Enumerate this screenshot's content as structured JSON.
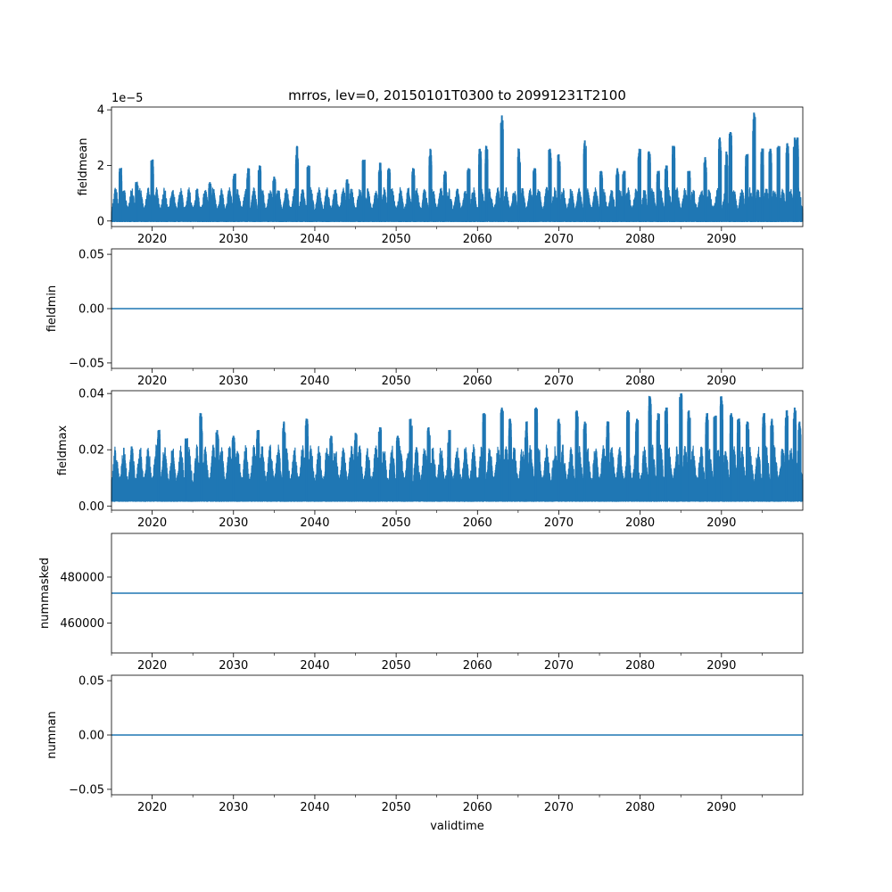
{
  "figure": {
    "title": "mrros, lev=0, 20150101T0300 to 20991231T2100",
    "xlabel": "validtime",
    "line_color": "#1f77b4"
  },
  "chart_data": [
    {
      "type": "line",
      "ylabel": "fieldmean",
      "xlim": [
        2015.0,
        2100.0
      ],
      "ylim": [
        -0.2,
        4.1
      ],
      "offset_text": "1e−5",
      "x_ticks": [
        2020,
        2030,
        2040,
        2050,
        2060,
        2070,
        2080,
        2090
      ],
      "x_tick_labels": [
        "2020",
        "2030",
        "2040",
        "2050",
        "2060",
        "2070",
        "2080",
        "2090"
      ],
      "y_ticks": [
        0,
        2,
        4
      ],
      "y_tick_labels": [
        "0",
        "2",
        "4"
      ],
      "series": [
        {
          "baseline": 0.0,
          "typical_peak": 1.1,
          "peaks": [
            {
              "x": 2016.1,
              "y": 1.9
            },
            {
              "x": 2018.1,
              "y": 1.4
            },
            {
              "x": 2020.0,
              "y": 2.2
            },
            {
              "x": 2027.1,
              "y": 1.4
            },
            {
              "x": 2030.1,
              "y": 1.7
            },
            {
              "x": 2031.8,
              "y": 1.9
            },
            {
              "x": 2033.2,
              "y": 2.0
            },
            {
              "x": 2035.0,
              "y": 1.6
            },
            {
              "x": 2037.8,
              "y": 2.7
            },
            {
              "x": 2039.2,
              "y": 2.0
            },
            {
              "x": 2044.0,
              "y": 1.5
            },
            {
              "x": 2046.0,
              "y": 2.2
            },
            {
              "x": 2048.0,
              "y": 2.1
            },
            {
              "x": 2049.1,
              "y": 1.9
            },
            {
              "x": 2052.1,
              "y": 1.9
            },
            {
              "x": 2054.2,
              "y": 2.6
            },
            {
              "x": 2056.0,
              "y": 1.8
            },
            {
              "x": 2058.9,
              "y": 1.9
            },
            {
              "x": 2060.3,
              "y": 2.6
            },
            {
              "x": 2061.1,
              "y": 2.7
            },
            {
              "x": 2063.0,
              "y": 3.8
            },
            {
              "x": 2065.1,
              "y": 2.6
            },
            {
              "x": 2067.0,
              "y": 1.9
            },
            {
              "x": 2068.9,
              "y": 2.6
            },
            {
              "x": 2070.0,
              "y": 2.4
            },
            {
              "x": 2073.2,
              "y": 2.9
            },
            {
              "x": 2075.2,
              "y": 1.8
            },
            {
              "x": 2077.2,
              "y": 1.9
            },
            {
              "x": 2078.0,
              "y": 1.8
            },
            {
              "x": 2079.9,
              "y": 2.6
            },
            {
              "x": 2081.1,
              "y": 2.5
            },
            {
              "x": 2082.2,
              "y": 1.8
            },
            {
              "x": 2083.2,
              "y": 2.0
            },
            {
              "x": 2084.1,
              "y": 2.7
            },
            {
              "x": 2086.0,
              "y": 1.8
            },
            {
              "x": 2088.0,
              "y": 2.3
            },
            {
              "x": 2089.8,
              "y": 3.0
            },
            {
              "x": 2090.6,
              "y": 2.5
            },
            {
              "x": 2091.1,
              "y": 3.2
            },
            {
              "x": 2093.1,
              "y": 2.4
            },
            {
              "x": 2094.0,
              "y": 3.9
            },
            {
              "x": 2095.0,
              "y": 2.6
            },
            {
              "x": 2096.0,
              "y": 2.6
            },
            {
              "x": 2097.0,
              "y": 2.7
            },
            {
              "x": 2098.1,
              "y": 2.8
            },
            {
              "x": 2099.0,
              "y": 3.0
            },
            {
              "x": 2099.3,
              "y": 3.0
            }
          ]
        }
      ]
    },
    {
      "type": "line",
      "ylabel": "fieldmin",
      "xlim": [
        2015.0,
        2100.0
      ],
      "ylim": [
        -0.055,
        0.055
      ],
      "x_ticks": [
        2020,
        2030,
        2040,
        2050,
        2060,
        2070,
        2080,
        2090
      ],
      "x_tick_labels": [
        "2020",
        "2030",
        "2040",
        "2050",
        "2060",
        "2070",
        "2080",
        "2090"
      ],
      "y_ticks": [
        -0.05,
        0.0,
        0.05
      ],
      "y_tick_labels": [
        "−0.05",
        "0.00",
        "0.05"
      ],
      "series": [
        {
          "constant": 0.0
        }
      ]
    },
    {
      "type": "line",
      "ylabel": "fieldmax",
      "xlim": [
        2015.0,
        2100.0
      ],
      "ylim": [
        -0.0015,
        0.041
      ],
      "x_ticks": [
        2020,
        2030,
        2040,
        2050,
        2060,
        2070,
        2080,
        2090
      ],
      "x_tick_labels": [
        "2020",
        "2030",
        "2040",
        "2050",
        "2060",
        "2070",
        "2080",
        "2090"
      ],
      "y_ticks": [
        0.0,
        0.02,
        0.04
      ],
      "y_tick_labels": [
        "0.00",
        "0.02",
        "0.04"
      ],
      "series": [
        {
          "baseline": 0.002,
          "typical_peak": 0.02,
          "peaks": [
            {
              "x": 2020.8,
              "y": 0.027
            },
            {
              "x": 2024.2,
              "y": 0.024
            },
            {
              "x": 2026.0,
              "y": 0.033
            },
            {
              "x": 2028.0,
              "y": 0.027
            },
            {
              "x": 2030.0,
              "y": 0.025
            },
            {
              "x": 2033.0,
              "y": 0.027
            },
            {
              "x": 2036.2,
              "y": 0.03
            },
            {
              "x": 2039.0,
              "y": 0.031
            },
            {
              "x": 2042.0,
              "y": 0.025
            },
            {
              "x": 2045.0,
              "y": 0.026
            },
            {
              "x": 2048.0,
              "y": 0.028
            },
            {
              "x": 2050.2,
              "y": 0.025
            },
            {
              "x": 2051.8,
              "y": 0.031
            },
            {
              "x": 2054.0,
              "y": 0.028
            },
            {
              "x": 2056.5,
              "y": 0.027
            },
            {
              "x": 2060.8,
              "y": 0.033
            },
            {
              "x": 2063.0,
              "y": 0.035
            },
            {
              "x": 2064.0,
              "y": 0.031
            },
            {
              "x": 2066.0,
              "y": 0.03
            },
            {
              "x": 2067.2,
              "y": 0.035
            },
            {
              "x": 2070.0,
              "y": 0.031
            },
            {
              "x": 2072.2,
              "y": 0.034
            },
            {
              "x": 2073.2,
              "y": 0.03
            },
            {
              "x": 2076.0,
              "y": 0.03
            },
            {
              "x": 2078.5,
              "y": 0.034
            },
            {
              "x": 2079.6,
              "y": 0.031
            },
            {
              "x": 2081.2,
              "y": 0.039
            },
            {
              "x": 2082.2,
              "y": 0.033
            },
            {
              "x": 2083.2,
              "y": 0.035
            },
            {
              "x": 2085.0,
              "y": 0.04
            },
            {
              "x": 2086.0,
              "y": 0.034
            },
            {
              "x": 2088.2,
              "y": 0.033
            },
            {
              "x": 2089.2,
              "y": 0.032
            },
            {
              "x": 2090.0,
              "y": 0.039
            },
            {
              "x": 2091.2,
              "y": 0.033
            },
            {
              "x": 2092.1,
              "y": 0.031
            },
            {
              "x": 2093.2,
              "y": 0.03
            },
            {
              "x": 2095.2,
              "y": 0.033
            },
            {
              "x": 2096.2,
              "y": 0.031
            },
            {
              "x": 2098.0,
              "y": 0.034
            },
            {
              "x": 2099.0,
              "y": 0.035
            },
            {
              "x": 2099.6,
              "y": 0.03
            }
          ]
        }
      ]
    },
    {
      "type": "line",
      "ylabel": "nummasked",
      "xlim": [
        2015.0,
        2100.0
      ],
      "ylim": [
        447000,
        499000
      ],
      "x_ticks": [
        2020,
        2030,
        2040,
        2050,
        2060,
        2070,
        2080,
        2090
      ],
      "x_tick_labels": [
        "2020",
        "2030",
        "2040",
        "2050",
        "2060",
        "2070",
        "2080",
        "2090"
      ],
      "y_ticks": [
        460000,
        480000
      ],
      "y_tick_labels": [
        "460000",
        "480000"
      ],
      "series": [
        {
          "constant": 473000
        }
      ]
    },
    {
      "type": "line",
      "ylabel": "numnan",
      "xlim": [
        2015.0,
        2100.0
      ],
      "ylim": [
        -0.055,
        0.055
      ],
      "x_ticks": [
        2020,
        2030,
        2040,
        2050,
        2060,
        2070,
        2080,
        2090
      ],
      "x_tick_labels": [
        "2020",
        "2030",
        "2040",
        "2050",
        "2060",
        "2070",
        "2080",
        "2090"
      ],
      "y_ticks": [
        -0.05,
        0.0,
        0.05
      ],
      "y_tick_labels": [
        "−0.05",
        "0.00",
        "0.05"
      ],
      "series": [
        {
          "constant": 0.0
        }
      ]
    }
  ]
}
